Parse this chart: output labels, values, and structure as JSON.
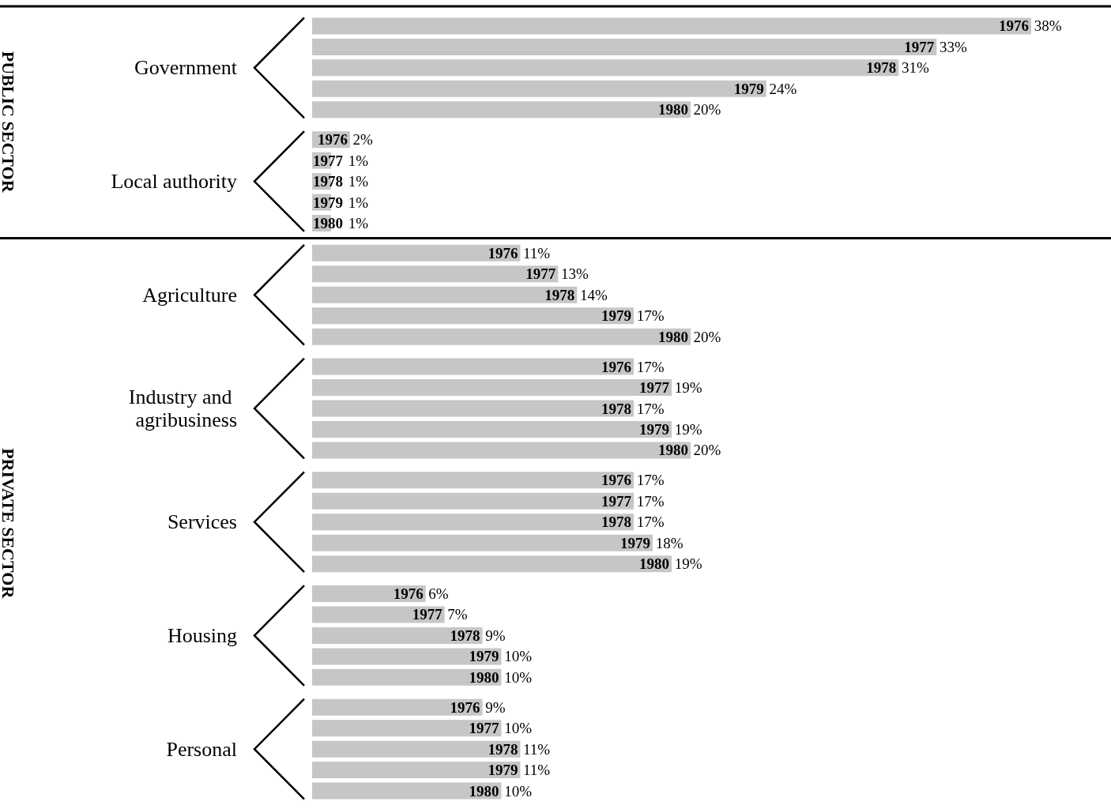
{
  "chart_data": {
    "type": "bar",
    "orientation": "horizontal",
    "categories": [
      "Government",
      "Local authority",
      "Agriculture",
      "Industry and agribusiness",
      "Services",
      "Housing",
      "Personal"
    ],
    "series": [
      {
        "name": "1976",
        "color": "#c6c6c6",
        "values": [
          38,
          2,
          11,
          17,
          17,
          6,
          9
        ],
        "value_labels": [
          "38%",
          "2%",
          "11%",
          "17%",
          "17%",
          "6%",
          "9%"
        ]
      },
      {
        "name": "1977",
        "color": "#c6c6c6",
        "values": [
          33,
          1,
          13,
          19,
          17,
          7,
          10
        ],
        "value_labels": [
          "33%",
          "1%",
          "13%",
          "19%",
          "17%",
          "7%",
          "10%"
        ]
      },
      {
        "name": "1978",
        "color": "#c6c6c6",
        "values": [
          31,
          1,
          14,
          17,
          17,
          9,
          11
        ],
        "value_labels": [
          "31%",
          "1%",
          "14%",
          "17%",
          "17%",
          "9%",
          "11%"
        ]
      },
      {
        "name": "1979",
        "color": "#c6c6c6",
        "values": [
          24,
          1,
          17,
          19,
          18,
          10,
          11
        ],
        "value_labels": [
          "24%",
          "1%",
          "17%",
          "19%",
          "18%",
          "10%",
          "11%"
        ]
      },
      {
        "name": "1980",
        "color": "#c6c6c6",
        "values": [
          20,
          1,
          20,
          20,
          19,
          10,
          10
        ],
        "value_labels": [
          "20%",
          "1%",
          "20%",
          "20%",
          "19%",
          "10%",
          "10%"
        ]
      }
    ],
    "annotations": [
      "PUBLIC SECTOR",
      "PRIVATE SECTOR"
    ]
  }
}
